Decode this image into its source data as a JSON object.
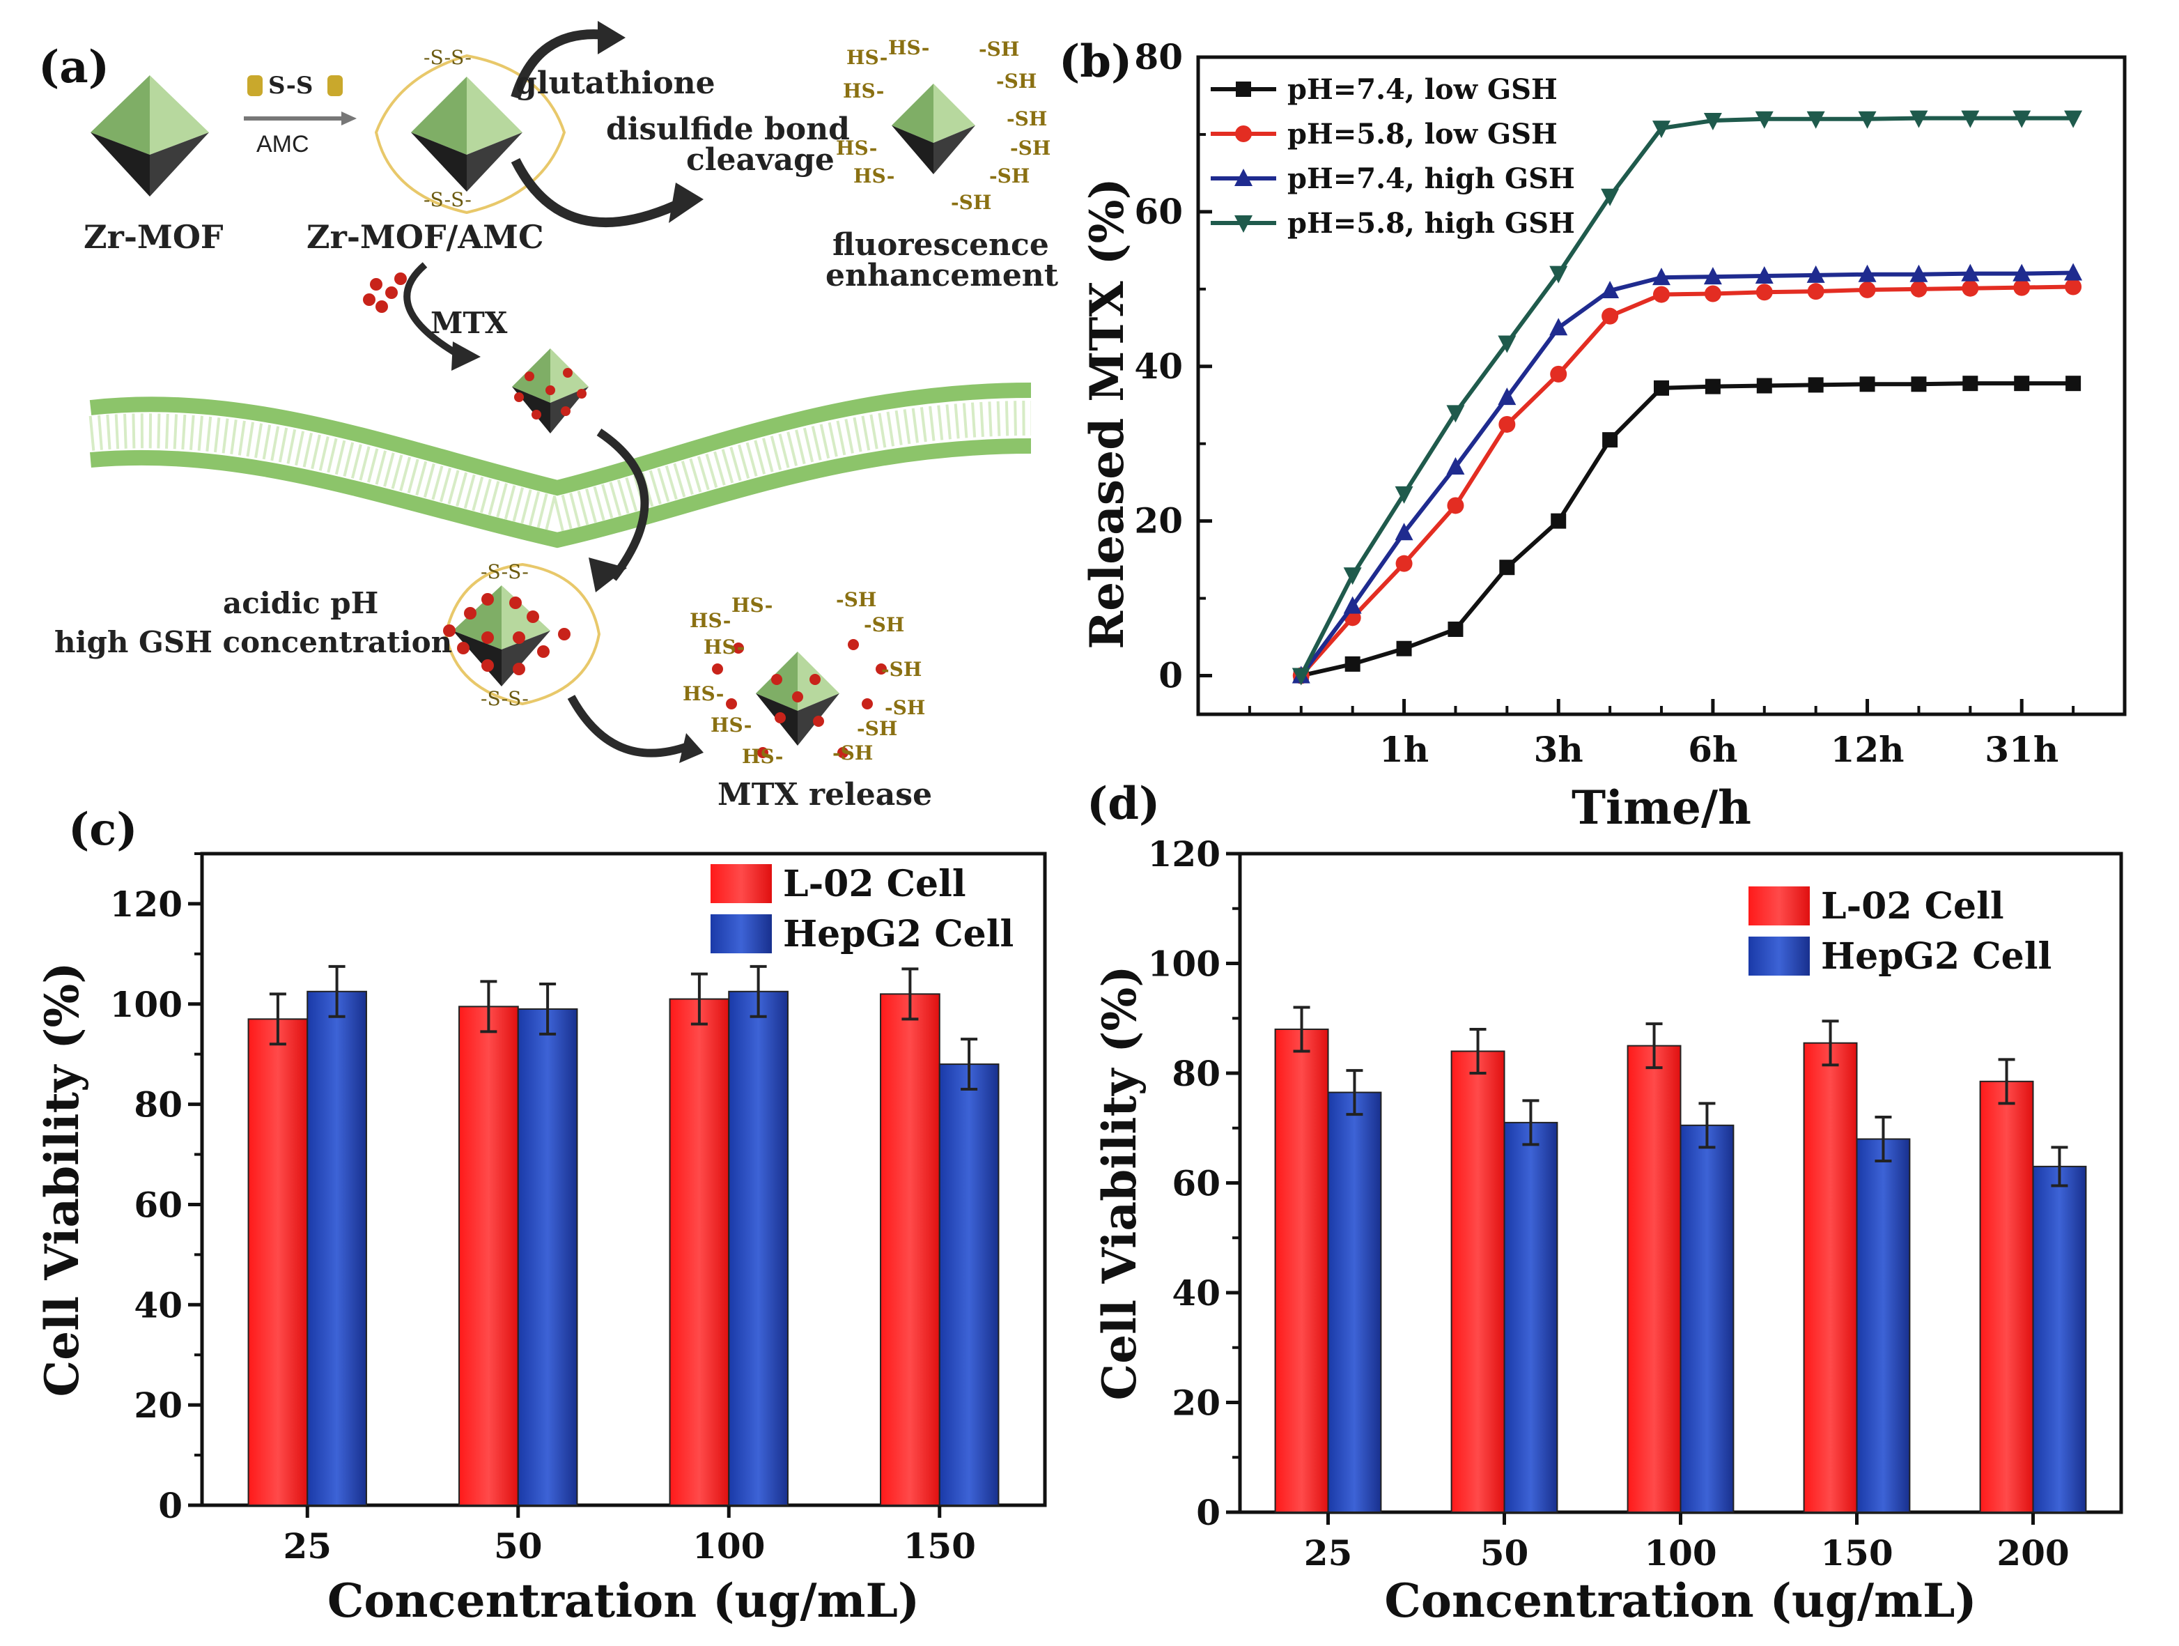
{
  "panels": {
    "a": "(a)",
    "b": "(b)",
    "c": "(c)",
    "d": "(d)"
  },
  "schematic": {
    "zr_mof": "Zr-MOF",
    "amc": "AMC",
    "ss_linker": "S-S",
    "zr_mof_amc": "Zr-MOF/AMC",
    "ss_mark": "-S-S-",
    "glutathione": "glutathione",
    "disulfide_1": "disulfide bond",
    "disulfide_2": "cleavage",
    "fluorescence_1": "fluorescence",
    "fluorescence_2": "enhancement",
    "mtx": "MTX",
    "acidic_1": "acidic pH",
    "acidic_2": "high GSH concentration",
    "mtx_release": "MTX release",
    "hs": "HS-",
    "sh": "-SH"
  },
  "chart_data": [
    {
      "id": "b",
      "type": "line",
      "xlabel": "Time/h",
      "ylabel": "Released MTX (%)",
      "ylim": [
        -5,
        80
      ],
      "yticks": [
        0,
        20,
        40,
        60,
        80
      ],
      "x": [
        0,
        1,
        2,
        3,
        4,
        5,
        6,
        7,
        8,
        9,
        10,
        11,
        12,
        13,
        14,
        15
      ],
      "xlim": [
        -2,
        16
      ],
      "xtick_labels": [
        {
          "x": 2,
          "label": "1h"
        },
        {
          "x": 5,
          "label": "3h"
        },
        {
          "x": 8,
          "label": "6h"
        },
        {
          "x": 11,
          "label": "12h"
        },
        {
          "x": 14,
          "label": "31h"
        }
      ],
      "series": [
        {
          "name": "pH=7.4, low GSH",
          "color": "#111111",
          "marker": "square",
          "values": [
            0,
            1.5,
            3.5,
            6,
            14,
            20,
            30.5,
            37.2,
            37.4,
            37.5,
            37.6,
            37.7,
            37.7,
            37.8,
            37.8,
            37.8
          ]
        },
        {
          "name": "pH=5.8, low GSH",
          "color": "#e32d22",
          "marker": "circle",
          "values": [
            0,
            7.5,
            14.5,
            22,
            32.5,
            39,
            46.5,
            49.3,
            49.4,
            49.6,
            49.7,
            49.9,
            50,
            50.1,
            50.2,
            50.3
          ]
        },
        {
          "name": "pH=7.4, high GSH",
          "color": "#1f2b8f",
          "marker": "triangle-up",
          "values": [
            0,
            9,
            18.5,
            27,
            36,
            45,
            49.8,
            51.5,
            51.6,
            51.7,
            51.8,
            51.9,
            51.9,
            52,
            52,
            52.1
          ]
        },
        {
          "name": "pH=5.8, high GSH",
          "color": "#1f5a4c",
          "marker": "triangle-down",
          "values": [
            0,
            13,
            23.5,
            34,
            43,
            52,
            62,
            70.8,
            71.8,
            72,
            72,
            72,
            72.1,
            72.1,
            72.1,
            72.1
          ]
        }
      ]
    },
    {
      "id": "c",
      "type": "bar",
      "xlabel": "Concentration (ug/mL)",
      "ylabel": "Cell Viability (%)",
      "ylim": [
        0,
        130
      ],
      "yticks": [
        0,
        20,
        40,
        60,
        80,
        100,
        120
      ],
      "categories": [
        "25",
        "50",
        "100",
        "150"
      ],
      "series": [
        {
          "name": "L-02 Cell",
          "color": "#ff2222",
          "values": [
            97,
            99.5,
            101,
            102
          ],
          "errors": [
            5,
            5,
            5,
            5
          ]
        },
        {
          "name": "HepG2 Cell",
          "color": "#2546b8",
          "values": [
            102.5,
            99,
            102.5,
            88
          ],
          "errors": [
            5,
            5,
            5,
            5
          ]
        }
      ]
    },
    {
      "id": "d",
      "type": "bar",
      "xlabel": "Concentration (ug/mL)",
      "ylabel": "Cell Viability (%)",
      "ylim": [
        0,
        120
      ],
      "yticks": [
        0,
        20,
        40,
        60,
        80,
        100,
        120
      ],
      "categories": [
        "25",
        "50",
        "100",
        "150",
        "200"
      ],
      "series": [
        {
          "name": "L-02 Cell",
          "color": "#ff2222",
          "values": [
            88,
            84,
            85,
            85.5,
            78.5
          ],
          "errors": [
            4,
            4,
            4,
            4,
            4
          ]
        },
        {
          "name": "HepG2 Cell",
          "color": "#2546b8",
          "values": [
            76.5,
            71,
            70.5,
            68,
            63
          ],
          "errors": [
            4,
            4,
            4,
            4,
            3.5
          ]
        }
      ]
    }
  ]
}
